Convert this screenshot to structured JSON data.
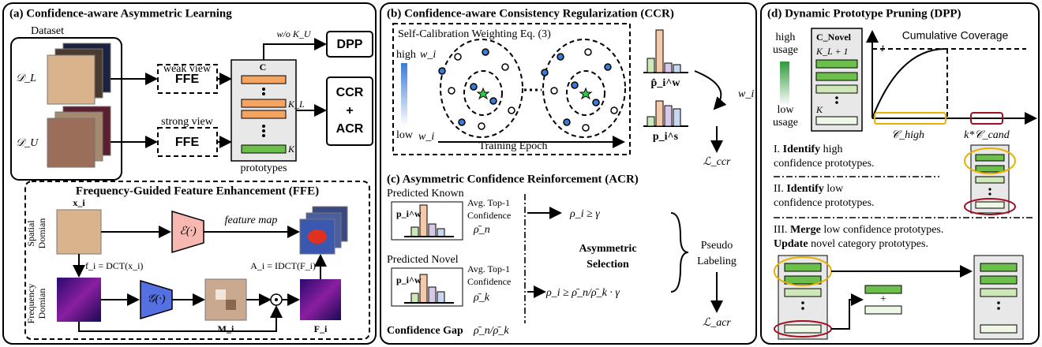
{
  "panel_a": {
    "title": "(a) Confidence-aware Asymmetric Learning",
    "dataset": "Dataset",
    "d_l": "𝒟_L",
    "d_u": "𝒟_U",
    "weak_view": "weak view",
    "strong_view": "strong view",
    "ffe_1": "FFE",
    "ffe_2": "FFE",
    "c_label": "C",
    "kl_label": "K_L",
    "k_label": "K",
    "prototypes": "prototypes",
    "wo_ku": "w/o K_U",
    "dpp": "DPP",
    "ccr_acr": [
      "CCR",
      "+",
      "ACR"
    ]
  },
  "ffe": {
    "title": "Frequency-Guided Feature Enhancement (FFE)",
    "xi": "x_i",
    "spatial_domain": [
      "Spatial",
      "Domian"
    ],
    "frequency_domain": [
      "Frequency",
      "Domian"
    ],
    "encoder": "ℰ(·)",
    "feature_map": "feature map",
    "fi": "f_i = DCT(x_i)",
    "ai": "A_i = IDCT(F_i)",
    "generator": "𝒢(·)",
    "mi": "M_i",
    "Fi": "F_i"
  },
  "panel_b": {
    "title": "(b) Confidence-aware Consistency Regularization (CCR)",
    "box_title": "Self-Calibration Weighting Eq. (3)",
    "high": "high",
    "low": "low",
    "wi_high": "w_i",
    "wi_low": "w_i",
    "training_epoch": "Training Epoch",
    "p_w": "p̂_i^w",
    "p_s": "p_i^s",
    "wi": "w_i",
    "loss": "ℒ_ccr"
  },
  "panel_c": {
    "title": "(c) Asymmetric Confidence Reinforcement (ACR)",
    "predicted_known": "Predicted Known",
    "predicted_novel": "Predicted Novel",
    "pw_known": "p_i^w",
    "pw_novel": "p_i^w",
    "avg_known": [
      "Avg. Top-1",
      "Confidence",
      "ρ̄_n"
    ],
    "avg_novel": [
      "Avg. Top-1",
      "Confidence",
      "ρ̄_k"
    ],
    "cond_known": "ρ_i ≥ γ",
    "cond_novel": "ρ_i ≥ ρ̄_n/ρ̄_k · γ",
    "selection": [
      "Asymmetric",
      "Selection"
    ],
    "pseudo": [
      "Pseudo",
      "Labeling"
    ],
    "loss": "ℒ_acr",
    "gap_label": "Confidence Gap",
    "gap": "ρ̄_n/ρ̄_k"
  },
  "panel_d": {
    "title": "(d) Dynamic Prototype Pruning (DPP)",
    "high_usage": [
      "high",
      "usage"
    ],
    "low_usage": [
      "low",
      "usage"
    ],
    "c_novel": "C_Novel",
    "kl1": "K_L + 1",
    "k": "K",
    "coverage": "Cumulative Coverage",
    "one": "1",
    "c_high": "𝒞_high",
    "k_cand": "k*𝒞_cand",
    "step1": [
      "I.",
      "Identify",
      "high",
      "confidence prototypes."
    ],
    "step2": [
      "II.",
      "Identify",
      "low",
      "confidence prototypes."
    ],
    "step3": [
      "III.",
      "Merge",
      "low confidence prototypes.",
      "Update",
      "novel category prototypes."
    ],
    "plus": "+"
  }
}
